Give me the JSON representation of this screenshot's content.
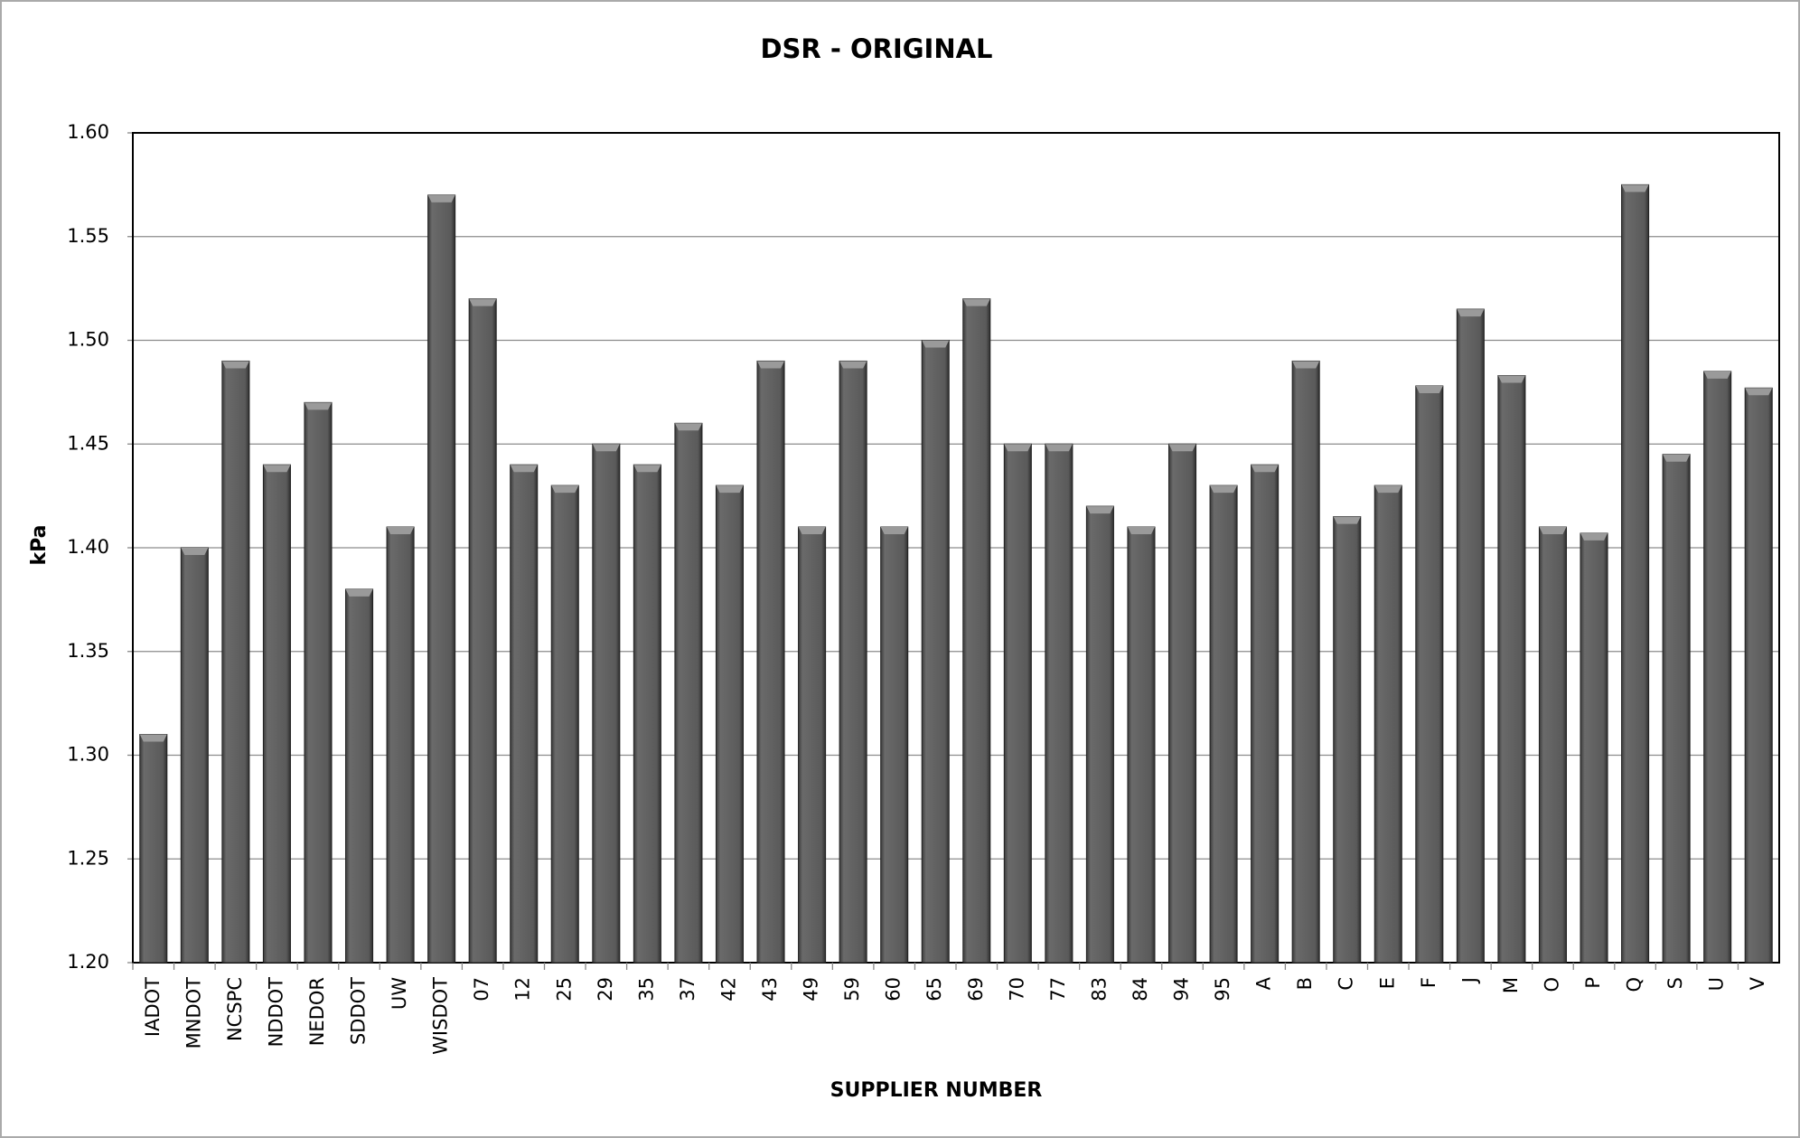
{
  "chart_data": {
    "type": "bar",
    "title": "DSR - ORIGINAL",
    "x_label": "SUPPLIER NUMBER",
    "y_label": "kPa",
    "categories": [
      "IADOT",
      "MNDOT",
      "NCSPC",
      "NDDOT",
      "NEDOR",
      "SDDOT",
      "UW",
      "WISDOT",
      "07",
      "12",
      "25",
      "29",
      "35",
      "37",
      "42",
      "43",
      "49",
      "59",
      "60",
      "65",
      "69",
      "70",
      "77",
      "83",
      "84",
      "94",
      "95",
      "A",
      "B",
      "C",
      "E",
      "F",
      "J",
      "M",
      "O",
      "P",
      "Q",
      "S",
      "U",
      "V"
    ],
    "values": [
      1.31,
      1.4,
      1.49,
      1.44,
      1.47,
      1.38,
      1.41,
      1.57,
      1.52,
      1.44,
      1.43,
      1.45,
      1.44,
      1.46,
      1.43,
      1.49,
      1.41,
      1.49,
      1.41,
      1.5,
      1.52,
      1.45,
      1.45,
      1.42,
      1.41,
      1.45,
      1.43,
      1.44,
      1.49,
      1.415,
      1.43,
      1.478,
      1.515,
      1.483,
      1.41,
      1.407,
      1.575,
      1.445,
      1.485,
      1.477
    ],
    "color": "#595959",
    "ylim": [
      1.2,
      1.6
    ],
    "yticks": [
      {
        "value": 1.2,
        "label": "1.20"
      },
      1.25,
      {
        "value": 1.3,
        "label": "1.30"
      },
      1.35,
      {
        "value": 1.4,
        "label": "1.40"
      },
      1.45,
      {
        "value": 1.5,
        "label": "1.50"
      },
      1.55,
      {
        "value": 1.6,
        "label": "1.60"
      }
    ],
    "grid": true
  }
}
